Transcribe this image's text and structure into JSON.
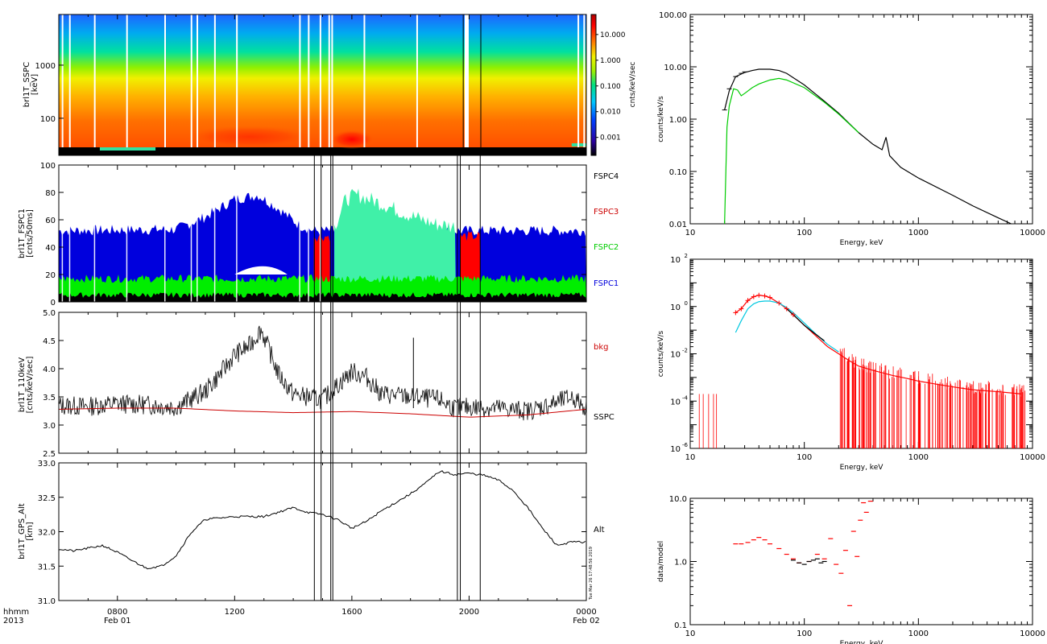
{
  "time_axis": {
    "header_top": "hhmm",
    "header_bottom": "2013",
    "tick_labels": [
      "0800",
      "1200",
      "1600",
      "2000",
      "0000"
    ],
    "tick_hours": [
      8,
      12,
      16,
      20,
      24
    ],
    "date_labels": [
      {
        "text": "Feb 01",
        "hour": 8
      },
      {
        "text": "Feb 02",
        "hour": 24
      }
    ],
    "range_hours": [
      6,
      24
    ]
  },
  "event_lines_hours": [
    14.72,
    14.95,
    15.28,
    15.35,
    19.6,
    19.7,
    20.38
  ],
  "timestamp": "Tue Mar 26 17:48:56 2019",
  "chart_data": [
    {
      "id": "ssp-spectrogram",
      "type": "heatmap",
      "ylabel": "brl1T_SSPC\n[keV]",
      "y_scale": "log",
      "ylim": [
        20,
        9000
      ],
      "y_ticks": [
        100,
        1000
      ],
      "y_tick_labels": [
        "100",
        "1000"
      ],
      "colorbar": {
        "label": "cnts/keV/sec",
        "scale": "log",
        "range": [
          0.0002,
          60
        ],
        "ticks": [
          10,
          1,
          0.1,
          0.01,
          0.001
        ],
        "tick_labels": [
          "10.000",
          "1.000",
          "0.100",
          "0.010",
          "0.001"
        ],
        "colors": [
          "#000000",
          "#2c00a0",
          "#0040ff",
          "#00c8ff",
          "#00e080",
          "#a0f000",
          "#f0f000",
          "#ff8000",
          "#ff0000",
          "#b00000"
        ]
      },
      "data_gaps_hours": [
        6.1,
        6.35,
        7.2,
        8.3,
        9.6,
        10.5,
        10.7,
        11.3,
        12.05,
        14.2,
        14.5,
        14.9,
        15.2,
        15.3,
        16.4,
        18.2,
        19.85,
        23.7,
        23.9
      ],
      "bright_spot": {
        "hour": 16.0,
        "energy_kev": 40
      }
    },
    {
      "id": "fspc-rates",
      "type": "area",
      "ylabel": "brl1T_FSPC1\n[cnts/50ms]",
      "ylim": [
        0,
        100
      ],
      "y_ticks": [
        0,
        20,
        40,
        60,
        80,
        100
      ],
      "series": [
        {
          "name": "FSPC4",
          "color": "#000000",
          "level": 5
        },
        {
          "name": "FSPC3",
          "color": "#cc0000",
          "level": 48
        },
        {
          "name": "FSPC2",
          "color": "#00cc00",
          "level": 17
        },
        {
          "name": "FSPC1",
          "color": "#0000dd",
          "level": 50
        }
      ],
      "fspc1_profile": {
        "hours": [
          6,
          10,
          11,
          12,
          12.8,
          13.5,
          14.2,
          14.7
        ],
        "values": [
          52,
          53,
          62,
          75,
          78,
          68,
          56,
          52
        ]
      },
      "fspc3_segments_hours": [
        [
          14.7,
          15.25
        ],
        [
          19.7,
          20.4
        ]
      ],
      "fspc2_burst": {
        "hours": [
          15.4,
          15.8,
          16.2,
          17.0,
          18.0,
          18.8,
          19.55
        ],
        "values": [
          55,
          75,
          78,
          72,
          63,
          57,
          55
        ]
      }
    },
    {
      "id": "sspc-110kev",
      "type": "line",
      "ylabel": "brl1T_110keV\n[cnts/keV/sec]",
      "ylim": [
        2.5,
        5.0
      ],
      "y_ticks": [
        2.5,
        3.0,
        3.5,
        4.0,
        4.5,
        5.0
      ],
      "y_tick_labels": [
        "2.5",
        "3.0",
        "3.5",
        "4.0",
        "4.5",
        "5.0"
      ],
      "series": [
        {
          "name": "bkg",
          "color": "#cc0000",
          "x": [
            6,
            8,
            10,
            12,
            14,
            16,
            18,
            20,
            22,
            24
          ],
          "y": [
            3.28,
            3.3,
            3.3,
            3.25,
            3.22,
            3.24,
            3.2,
            3.14,
            3.18,
            3.28
          ]
        },
        {
          "name": "SSPC",
          "color": "#000000",
          "x": [
            6,
            7,
            8,
            9,
            10,
            11,
            11.5,
            12,
            12.5,
            12.9,
            13.5,
            14,
            15,
            15.5,
            16,
            16.5,
            17,
            18,
            19,
            19.5,
            20,
            21,
            22,
            23,
            23.5,
            24
          ],
          "y": [
            3.35,
            3.33,
            3.38,
            3.36,
            3.32,
            3.6,
            3.9,
            4.25,
            4.4,
            4.7,
            3.9,
            3.55,
            3.45,
            3.7,
            3.95,
            3.85,
            3.55,
            3.5,
            3.45,
            3.3,
            3.32,
            3.3,
            3.25,
            3.4,
            3.5,
            3.3
          ]
        }
      ]
    },
    {
      "id": "gps-alt",
      "type": "line",
      "ylabel": "brl1T_GPS_Alt\n[km]",
      "ylim": [
        31.0,
        33.0
      ],
      "y_ticks": [
        31.0,
        31.5,
        32.0,
        32.5,
        33.0
      ],
      "y_tick_labels": [
        "31.0",
        "31.5",
        "32.0",
        "32.5",
        "33.0"
      ],
      "series": [
        {
          "name": "Alt",
          "color": "#000000",
          "x": [
            6,
            6.5,
            7,
            7.5,
            8,
            8.5,
            9,
            9.5,
            10,
            10.5,
            11,
            11.5,
            12,
            13,
            14,
            14.5,
            15,
            15.5,
            16,
            16.5,
            17,
            18,
            18.5,
            19,
            19.5,
            20,
            20.5,
            21,
            21.5,
            22,
            22.5,
            23,
            23.5,
            24
          ],
          "y": [
            31.75,
            31.72,
            31.76,
            31.8,
            31.7,
            31.58,
            31.47,
            31.5,
            31.65,
            31.98,
            32.18,
            32.2,
            32.22,
            32.22,
            32.35,
            32.28,
            32.25,
            32.18,
            32.05,
            32.15,
            32.3,
            32.55,
            32.7,
            32.88,
            32.83,
            32.85,
            32.82,
            32.75,
            32.6,
            32.35,
            32.05,
            31.8,
            31.85,
            31.85
          ]
        }
      ]
    },
    {
      "id": "spectrum-counts",
      "type": "line",
      "xlabel": "Energy, keV",
      "ylabel": "counts/keV/s",
      "x_scale": "log",
      "y_scale": "log",
      "xlim": [
        10,
        10000
      ],
      "ylim": [
        0.01,
        100
      ],
      "x_ticks": [
        10,
        100,
        1000,
        10000
      ],
      "x_tick_labels": [
        "10",
        "100",
        "1000",
        "10000"
      ],
      "y_ticks": [
        0.01,
        0.1,
        1,
        10,
        100
      ],
      "y_tick_labels": [
        "0.01",
        "0.10",
        "1.00",
        "10.00",
        "100.00"
      ],
      "series": [
        {
          "color": "#000000",
          "x": [
            20,
            22,
            25,
            30,
            35,
            40,
            50,
            60,
            70,
            100,
            150,
            200,
            300,
            400,
            480,
            520,
            560,
            700,
            1000,
            2000,
            3000,
            5000,
            6500
          ],
          "y": [
            1.5,
            3.5,
            6.5,
            7.8,
            8.5,
            9.0,
            9.0,
            8.5,
            7.5,
            4.5,
            2.2,
            1.3,
            0.55,
            0.33,
            0.26,
            0.45,
            0.2,
            0.12,
            0.075,
            0.035,
            0.022,
            0.013,
            0.01
          ]
        },
        {
          "color": "#00cc00",
          "x": [
            20,
            21,
            22,
            24,
            26,
            28,
            30,
            35,
            40,
            50,
            60,
            70,
            100,
            150,
            200,
            300
          ],
          "y": [
            0.01,
            0.7,
            1.8,
            3.8,
            3.6,
            2.8,
            3.1,
            4.0,
            4.7,
            5.6,
            6.0,
            5.6,
            4.0,
            2.1,
            1.25,
            0.55
          ]
        }
      ]
    },
    {
      "id": "spectrum-bkg-subtracted",
      "type": "scatter",
      "xlabel": "Energy, keV",
      "ylabel": "counts/keV/s",
      "x_scale": "log",
      "y_scale": "log",
      "xlim": [
        10,
        10000
      ],
      "ylim": [
        1e-06,
        100
      ],
      "x_ticks": [
        10,
        100,
        1000,
        10000
      ],
      "x_tick_labels": [
        "10",
        "100",
        "1000",
        "10000"
      ],
      "y_ticks": [
        1e-06,
        0.0001,
        0.01,
        1,
        100
      ],
      "y_tick_labels": [
        "10",
        "10",
        "10",
        "10",
        "10"
      ],
      "y_tick_exponents": [
        "-6",
        "-4",
        "-2",
        "0",
        "2"
      ],
      "series": [
        {
          "color": "#ff0000",
          "x": [
            25,
            28,
            32,
            36,
            40,
            45,
            50,
            60,
            70,
            80,
            100,
            130,
            160,
            200,
            250,
            300,
            400,
            500,
            600,
            800,
            1000,
            1500,
            2000,
            3000,
            5000,
            8000
          ],
          "y": [
            0.55,
            0.8,
            1.8,
            2.6,
            3.0,
            2.8,
            2.4,
            1.4,
            0.8,
            0.45,
            0.16,
            0.05,
            0.02,
            0.01,
            0.005,
            0.003,
            0.002,
            0.0015,
            0.0012,
            0.0009,
            0.0007,
            0.0005,
            0.0004,
            0.0003,
            0.00025,
            0.0002
          ]
        },
        {
          "color": "#00c8e0",
          "x": [
            25,
            28,
            32,
            36,
            40,
            45,
            50,
            60,
            70,
            80,
            100,
            130,
            160,
            200
          ],
          "y": [
            0.08,
            0.25,
            0.8,
            1.3,
            1.6,
            1.7,
            1.7,
            1.4,
            0.9,
            0.55,
            0.2,
            0.06,
            0.025,
            0.012
          ]
        },
        {
          "color": "#000000",
          "x": [
            70,
            80,
            100,
            120,
            150
          ],
          "y": [
            0.8,
            0.45,
            0.16,
            0.08,
            0.035
          ]
        }
      ]
    },
    {
      "id": "data-model-ratio",
      "type": "scatter",
      "xlabel": "Energy, keV",
      "ylabel": "data/model",
      "x_scale": "log",
      "y_scale": "log",
      "xlim": [
        10,
        10000
      ],
      "ylim": [
        0.1,
        10
      ],
      "x_ticks": [
        10,
        100,
        1000,
        10000
      ],
      "x_tick_labels": [
        "10",
        "100",
        "1000",
        "10000"
      ],
      "y_ticks": [
        0.1,
        1,
        10
      ],
      "y_tick_labels": [
        "0.1",
        "1.0",
        "10.0"
      ],
      "series": [
        {
          "color": "#ff0000",
          "x": [
            25,
            28,
            32,
            36,
            40,
            45,
            50,
            60,
            70,
            80,
            90,
            110,
            130,
            150,
            170,
            190,
            210,
            230,
            250,
            270,
            290,
            310,
            330,
            350,
            380
          ],
          "y": [
            1.9,
            1.9,
            2.0,
            2.2,
            2.4,
            2.2,
            1.9,
            1.6,
            1.3,
            1.1,
            0.95,
            1.0,
            1.3,
            1.1,
            2.3,
            0.9,
            0.65,
            1.5,
            0.2,
            3.0,
            1.2,
            4.5,
            8.5,
            6.0,
            9.0
          ]
        },
        {
          "color": "#000000",
          "x": [
            80,
            90,
            100,
            110,
            120,
            130,
            140,
            150
          ],
          "y": [
            1.05,
            0.95,
            0.9,
            1.0,
            1.05,
            1.1,
            0.95,
            1.0
          ]
        }
      ]
    }
  ]
}
